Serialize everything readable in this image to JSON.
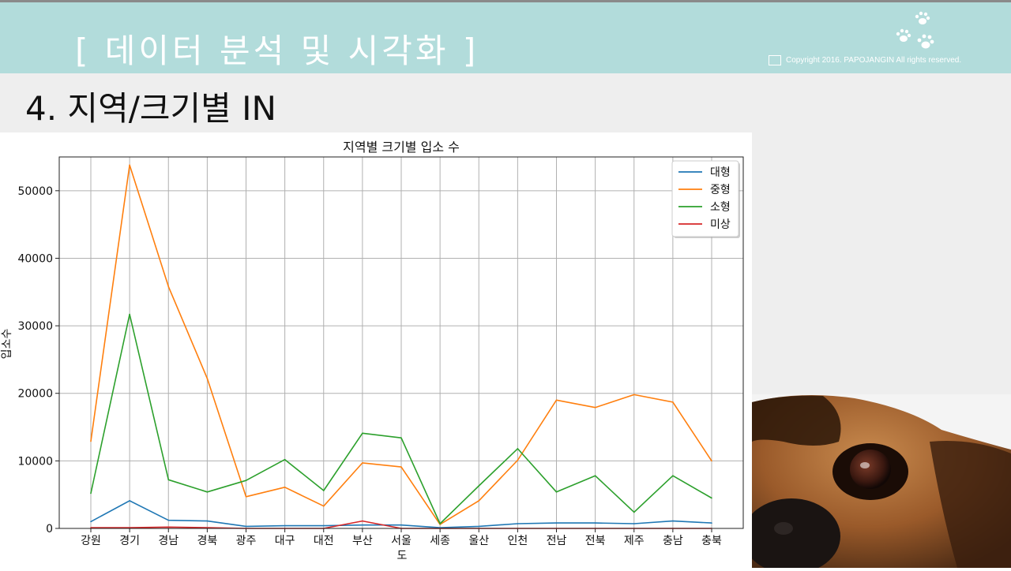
{
  "header": {
    "title": "[  데이터 분석 및 시각화 ]",
    "copyright": "Copyright 2016. PAPOJANGIN All rights reserved."
  },
  "section": {
    "title": "4. 지역/크기별 IN"
  },
  "chart_data": {
    "type": "line",
    "title": "지역별 크기별 입소 수",
    "xlabel": "도",
    "ylabel": "입소수",
    "categories": [
      "강원",
      "경기",
      "경남",
      "경북",
      "광주",
      "대구",
      "대전",
      "부산",
      "서울",
      "세종",
      "울산",
      "인천",
      "전남",
      "전북",
      "제주",
      "충남",
      "충북"
    ],
    "ylim": [
      0,
      55000
    ],
    "yticks": [
      0,
      10000,
      20000,
      30000,
      40000,
      50000
    ],
    "grid": true,
    "legend_position": "top-right",
    "series": [
      {
        "name": "대형",
        "color": "#1f77b4",
        "values": [
          1000,
          4100,
          1200,
          1100,
          300,
          400,
          400,
          500,
          500,
          100,
          300,
          700,
          800,
          800,
          700,
          1100,
          800
        ]
      },
      {
        "name": "중형",
        "color": "#ff7f0e",
        "values": [
          12900,
          53800,
          35800,
          22200,
          4700,
          6100,
          3300,
          9700,
          9100,
          600,
          4100,
          10100,
          19000,
          17900,
          19800,
          18700,
          10000
        ]
      },
      {
        "name": "소형",
        "color": "#2ca02c",
        "values": [
          5200,
          31700,
          7200,
          5400,
          7100,
          10200,
          5600,
          14100,
          13400,
          700,
          6300,
          11800,
          5400,
          7800,
          2400,
          7800,
          4500
        ]
      },
      {
        "name": "미상",
        "color": "#d62728",
        "values": [
          100,
          100,
          200,
          100,
          0,
          0,
          0,
          1100,
          0,
          0,
          0,
          0,
          0,
          0,
          0,
          0,
          0
        ]
      }
    ]
  }
}
